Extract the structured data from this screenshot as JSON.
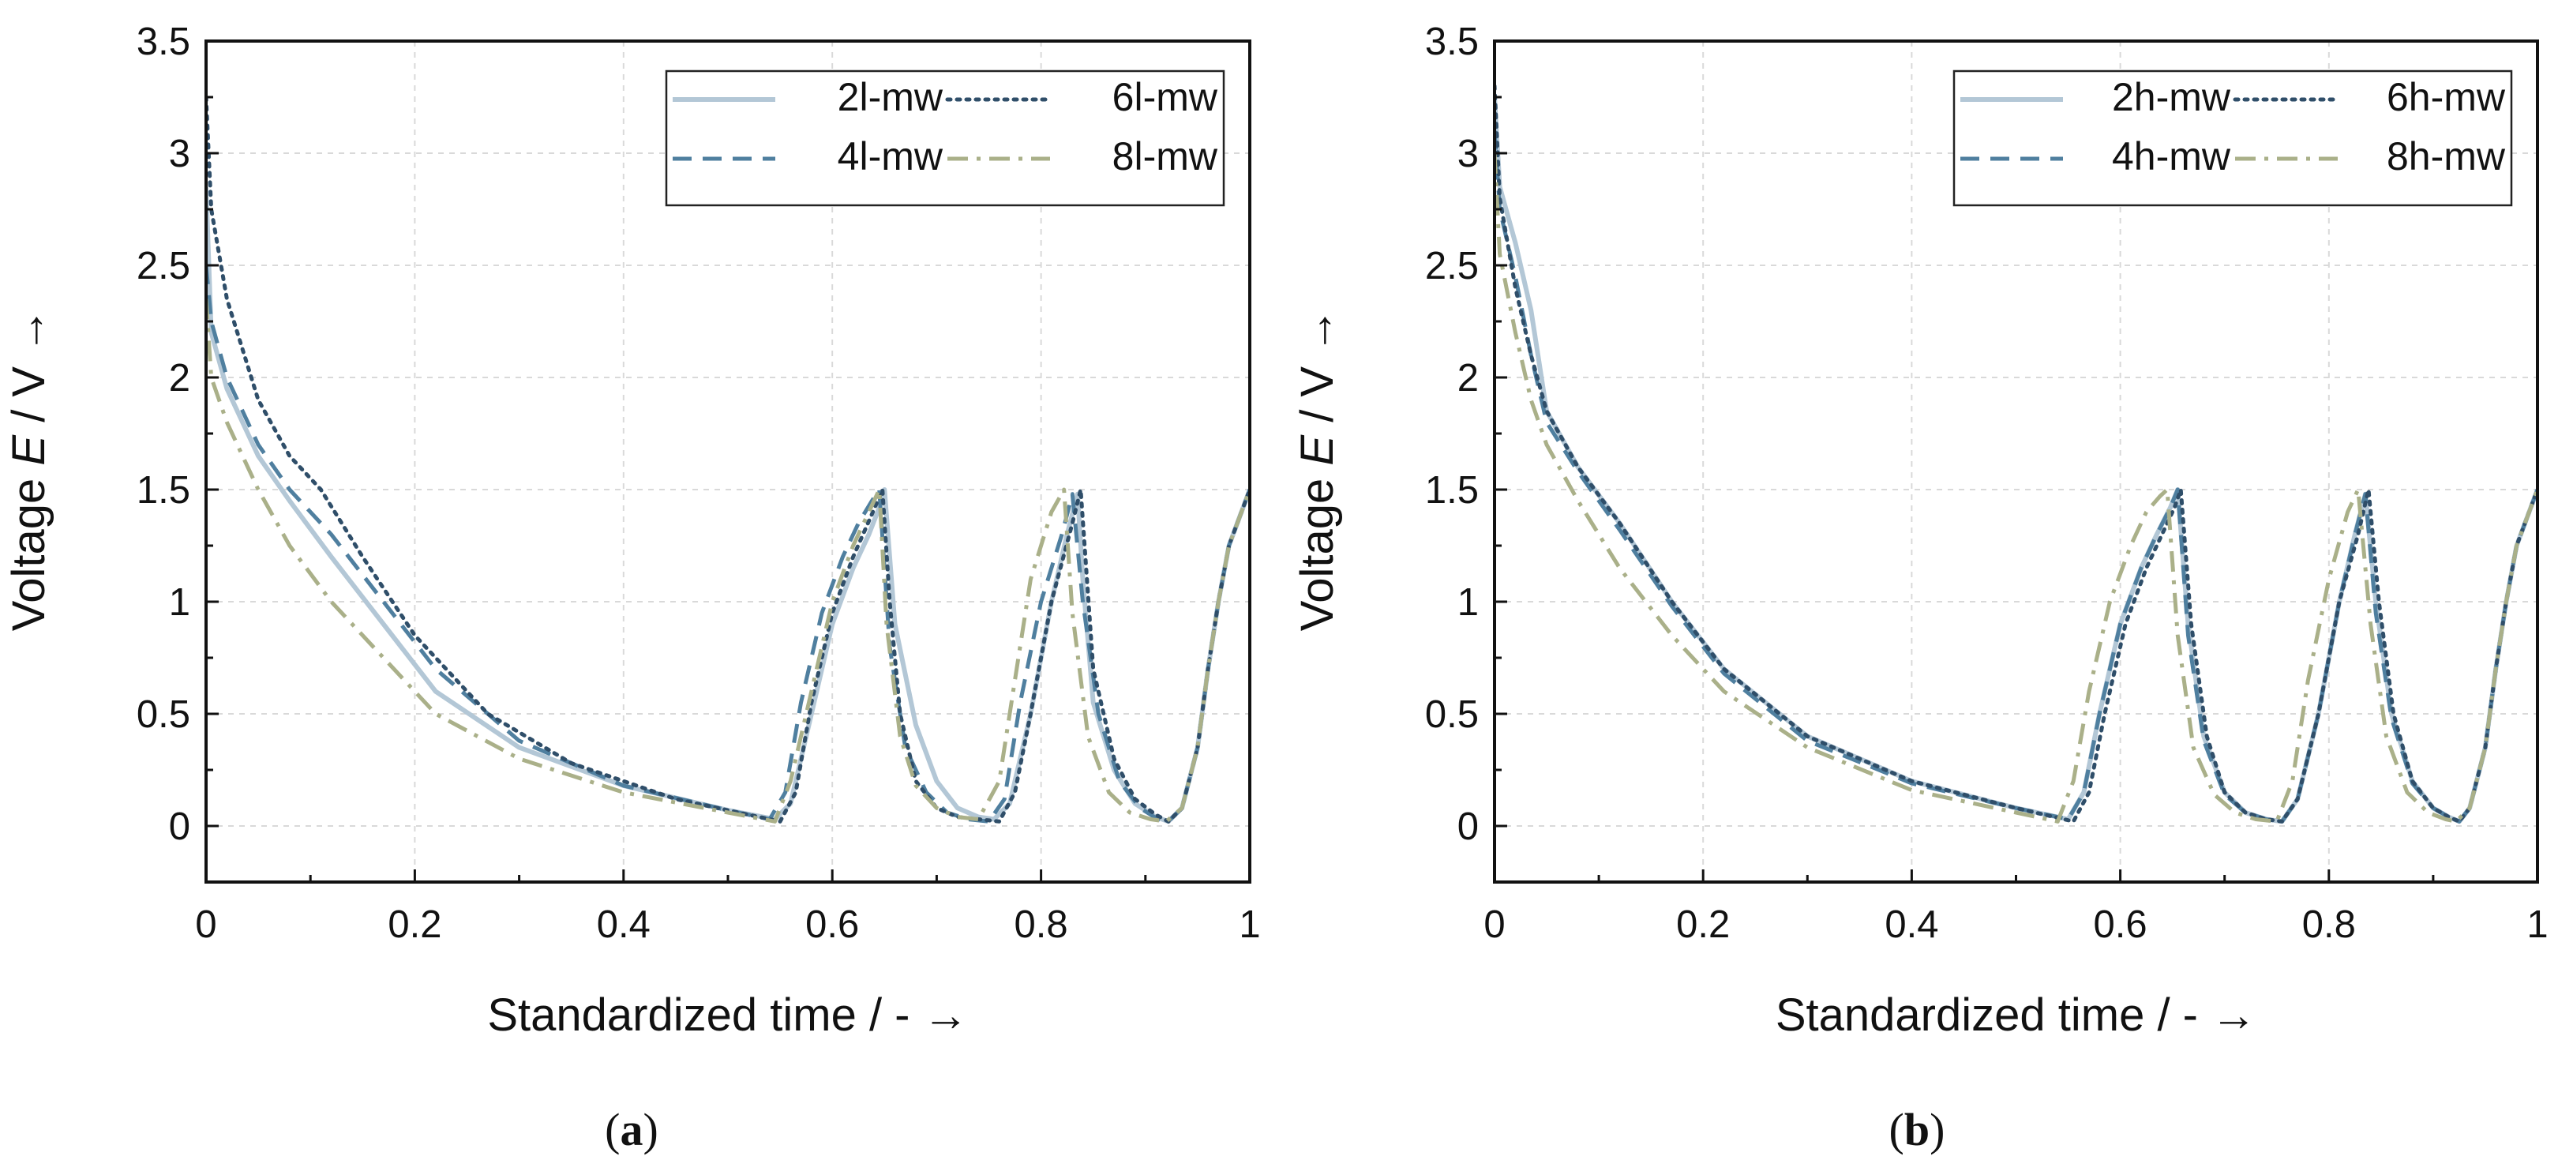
{
  "figure": {
    "y_label_prefix": "Voltage ",
    "y_label_symbol": "E",
    "y_label_suffix": " / V →",
    "x_label": "Standardized time / - →"
  },
  "colors": {
    "c2": "#b3c7d6",
    "c4": "#4f7f9f",
    "c6": "#2f4e69",
    "c8": "#aab089",
    "grid": "#d9d9d9",
    "axis": "#111111"
  },
  "chart_data": [
    {
      "type": "line",
      "panel_caption_prefix": "(",
      "panel_letter": "a",
      "panel_caption_suffix": ")",
      "xlabel": "Standardized time / - →",
      "ylabel": "Voltage E / V →",
      "xlim": [
        0,
        1
      ],
      "ylim": [
        -0.25,
        3.5
      ],
      "xticks": [
        "0",
        "0.2",
        "0.4",
        "0.6",
        "0.8",
        "1"
      ],
      "yticks": [
        "0",
        "0.5",
        "1",
        "1.5",
        "2",
        "2.5",
        "3",
        "3.5"
      ],
      "grid": true,
      "legend_position": "top-right",
      "series": [
        {
          "name": "2l-mw",
          "style": "solid",
          "color_key": "c2",
          "x": [
            0,
            0.005,
            0.02,
            0.05,
            0.08,
            0.12,
            0.17,
            0.22,
            0.3,
            0.4,
            0.5,
            0.545,
            0.56,
            0.58,
            0.6,
            0.62,
            0.635,
            0.645,
            0.65,
            0.66,
            0.68,
            0.7,
            0.72,
            0.74,
            0.755,
            0.77,
            0.79,
            0.81,
            0.825,
            0.835,
            0.84,
            0.85,
            0.87,
            0.89,
            0.91,
            0.922,
            0.935,
            0.95,
            0.96,
            0.97,
            0.98,
            1.0
          ],
          "y": [
            2.85,
            2.2,
            1.95,
            1.65,
            1.45,
            1.2,
            0.9,
            0.6,
            0.35,
            0.18,
            0.07,
            0.03,
            0.1,
            0.5,
            0.9,
            1.15,
            1.3,
            1.42,
            1.5,
            0.9,
            0.45,
            0.2,
            0.08,
            0.04,
            0.03,
            0.1,
            0.5,
            1.0,
            1.3,
            1.48,
            1.1,
            0.55,
            0.25,
            0.1,
            0.04,
            0.02,
            0.08,
            0.35,
            0.7,
            1.0,
            1.25,
            1.5
          ]
        },
        {
          "name": "4l-mw",
          "style": "dashed",
          "color_key": "c4",
          "x": [
            0,
            0.005,
            0.02,
            0.05,
            0.08,
            0.12,
            0.17,
            0.22,
            0.3,
            0.4,
            0.5,
            0.54,
            0.555,
            0.57,
            0.59,
            0.61,
            0.625,
            0.638,
            0.645,
            0.655,
            0.67,
            0.69,
            0.71,
            0.73,
            0.75,
            0.765,
            0.78,
            0.8,
            0.82,
            0.83,
            0.84,
            0.855,
            0.875,
            0.895,
            0.912,
            0.922,
            0.935,
            0.95,
            0.96,
            0.97,
            0.98,
            1.0
          ],
          "y": [
            2.5,
            2.25,
            2.0,
            1.7,
            1.5,
            1.3,
            1.0,
            0.7,
            0.38,
            0.18,
            0.07,
            0.03,
            0.15,
            0.55,
            0.95,
            1.2,
            1.35,
            1.45,
            1.5,
            0.8,
            0.35,
            0.15,
            0.06,
            0.03,
            0.02,
            0.12,
            0.55,
            1.0,
            1.3,
            1.48,
            1.0,
            0.5,
            0.2,
            0.08,
            0.03,
            0.02,
            0.08,
            0.35,
            0.7,
            1.0,
            1.25,
            1.5
          ]
        },
        {
          "name": "6l-mw",
          "style": "dotted",
          "color_key": "c6",
          "x": [
            0,
            0.005,
            0.02,
            0.05,
            0.08,
            0.11,
            0.15,
            0.2,
            0.27,
            0.35,
            0.45,
            0.52,
            0.55,
            0.565,
            0.58,
            0.6,
            0.62,
            0.637,
            0.648,
            0.655,
            0.665,
            0.68,
            0.7,
            0.72,
            0.74,
            0.76,
            0.775,
            0.79,
            0.81,
            0.83,
            0.838,
            0.85,
            0.87,
            0.89,
            0.91,
            0.922,
            0.935,
            0.95,
            0.96,
            0.97,
            0.98,
            1.0
          ],
          "y": [
            3.25,
            2.75,
            2.35,
            1.9,
            1.65,
            1.5,
            1.2,
            0.85,
            0.5,
            0.28,
            0.12,
            0.05,
            0.02,
            0.15,
            0.55,
            0.95,
            1.2,
            1.38,
            1.5,
            1.0,
            0.5,
            0.2,
            0.08,
            0.04,
            0.03,
            0.02,
            0.15,
            0.5,
            1.0,
            1.35,
            1.5,
            0.7,
            0.3,
            0.12,
            0.05,
            0.02,
            0.08,
            0.35,
            0.7,
            1.0,
            1.25,
            1.5
          ]
        },
        {
          "name": "8l-mw",
          "style": "dashdot",
          "color_key": "c8",
          "x": [
            0,
            0.005,
            0.02,
            0.05,
            0.08,
            0.12,
            0.17,
            0.22,
            0.3,
            0.4,
            0.5,
            0.545,
            0.56,
            0.58,
            0.6,
            0.62,
            0.635,
            0.645,
            0.652,
            0.665,
            0.68,
            0.7,
            0.72,
            0.74,
            0.76,
            0.775,
            0.79,
            0.81,
            0.822,
            0.83,
            0.845,
            0.865,
            0.885,
            0.905,
            0.92,
            0.935,
            0.95,
            0.96,
            0.97,
            0.98,
            1.0
          ],
          "y": [
            2.35,
            2.0,
            1.8,
            1.5,
            1.25,
            1.0,
            0.75,
            0.5,
            0.3,
            0.15,
            0.06,
            0.02,
            0.2,
            0.6,
            1.0,
            1.25,
            1.4,
            1.5,
            0.9,
            0.4,
            0.18,
            0.08,
            0.04,
            0.03,
            0.2,
            0.65,
            1.1,
            1.4,
            1.5,
            0.95,
            0.4,
            0.15,
            0.06,
            0.03,
            0.02,
            0.08,
            0.35,
            0.7,
            1.0,
            1.25,
            1.5
          ]
        }
      ]
    },
    {
      "type": "line",
      "panel_caption_prefix": "(",
      "panel_letter": "b",
      "panel_caption_suffix": ")",
      "xlabel": "Standardized time / - →",
      "ylabel": "Voltage E / V →",
      "xlim": [
        0,
        1
      ],
      "ylim": [
        -0.25,
        3.5
      ],
      "xticks": [
        "0",
        "0.2",
        "0.4",
        "0.6",
        "0.8",
        "1"
      ],
      "yticks": [
        "0",
        "0.5",
        "1",
        "1.5",
        "2",
        "2.5",
        "3",
        "3.5"
      ],
      "grid": true,
      "legend_position": "top-right",
      "series": [
        {
          "name": "2h-mw",
          "style": "solid",
          "color_key": "c2",
          "x": [
            0,
            0.005,
            0.02,
            0.035,
            0.05,
            0.08,
            0.12,
            0.17,
            0.22,
            0.3,
            0.4,
            0.5,
            0.55,
            0.565,
            0.58,
            0.6,
            0.62,
            0.635,
            0.648,
            0.655,
            0.665,
            0.68,
            0.7,
            0.72,
            0.74,
            0.755,
            0.77,
            0.79,
            0.81,
            0.825,
            0.835,
            0.845,
            0.86,
            0.88,
            0.9,
            0.915,
            0.925,
            0.935,
            0.95,
            0.96,
            0.97,
            0.98,
            1.0
          ],
          "y": [
            3.25,
            2.85,
            2.6,
            2.3,
            1.85,
            1.6,
            1.35,
            1.0,
            0.7,
            0.4,
            0.2,
            0.08,
            0.03,
            0.15,
            0.5,
            0.9,
            1.15,
            1.3,
            1.42,
            1.5,
            0.9,
            0.4,
            0.15,
            0.06,
            0.03,
            0.02,
            0.12,
            0.5,
            1.0,
            1.3,
            1.48,
            1.0,
            0.5,
            0.2,
            0.08,
            0.04,
            0.02,
            0.08,
            0.35,
            0.7,
            1.0,
            1.25,
            1.5
          ]
        },
        {
          "name": "4h-mw",
          "style": "dashed",
          "color_key": "c4",
          "x": [
            0,
            0.005,
            0.02,
            0.035,
            0.05,
            0.08,
            0.12,
            0.17,
            0.22,
            0.3,
            0.4,
            0.5,
            0.55,
            0.565,
            0.58,
            0.6,
            0.62,
            0.635,
            0.648,
            0.655,
            0.665,
            0.68,
            0.7,
            0.72,
            0.74,
            0.755,
            0.77,
            0.79,
            0.81,
            0.825,
            0.835,
            0.845,
            0.86,
            0.88,
            0.9,
            0.915,
            0.925,
            0.935,
            0.95,
            0.96,
            0.97,
            0.98,
            1.0
          ],
          "y": [
            3.1,
            2.75,
            2.45,
            2.1,
            1.8,
            1.58,
            1.32,
            0.98,
            0.68,
            0.38,
            0.19,
            0.08,
            0.03,
            0.15,
            0.5,
            0.9,
            1.15,
            1.3,
            1.42,
            1.5,
            0.85,
            0.38,
            0.14,
            0.06,
            0.03,
            0.02,
            0.12,
            0.5,
            1.0,
            1.3,
            1.48,
            0.95,
            0.48,
            0.19,
            0.08,
            0.04,
            0.02,
            0.08,
            0.35,
            0.7,
            1.0,
            1.25,
            1.5
          ]
        },
        {
          "name": "6h-mw",
          "style": "dotted",
          "color_key": "c6",
          "x": [
            0,
            0.005,
            0.02,
            0.035,
            0.05,
            0.08,
            0.12,
            0.17,
            0.22,
            0.3,
            0.4,
            0.5,
            0.555,
            0.57,
            0.585,
            0.605,
            0.625,
            0.64,
            0.652,
            0.658,
            0.668,
            0.683,
            0.7,
            0.72,
            0.74,
            0.755,
            0.77,
            0.79,
            0.81,
            0.828,
            0.838,
            0.848,
            0.862,
            0.88,
            0.9,
            0.915,
            0.925,
            0.935,
            0.95,
            0.96,
            0.97,
            0.98,
            1.0
          ],
          "y": [
            3.3,
            2.8,
            2.4,
            2.1,
            1.85,
            1.6,
            1.35,
            1.0,
            0.7,
            0.4,
            0.2,
            0.08,
            0.02,
            0.15,
            0.5,
            0.9,
            1.15,
            1.3,
            1.42,
            1.5,
            0.9,
            0.4,
            0.15,
            0.06,
            0.03,
            0.02,
            0.12,
            0.5,
            1.0,
            1.3,
            1.5,
            1.0,
            0.5,
            0.2,
            0.08,
            0.04,
            0.02,
            0.08,
            0.35,
            0.7,
            1.0,
            1.25,
            1.5
          ]
        },
        {
          "name": "8h-mw",
          "style": "dashdot",
          "color_key": "c8",
          "x": [
            0,
            0.005,
            0.02,
            0.035,
            0.05,
            0.08,
            0.12,
            0.17,
            0.22,
            0.3,
            0.4,
            0.5,
            0.54,
            0.555,
            0.57,
            0.59,
            0.61,
            0.625,
            0.638,
            0.645,
            0.655,
            0.67,
            0.69,
            0.71,
            0.73,
            0.75,
            0.765,
            0.78,
            0.8,
            0.818,
            0.828,
            0.84,
            0.855,
            0.875,
            0.895,
            0.912,
            0.922,
            0.935,
            0.95,
            0.96,
            0.97,
            0.98,
            1.0
          ],
          "y": [
            3.0,
            2.55,
            2.2,
            1.9,
            1.7,
            1.45,
            1.15,
            0.85,
            0.6,
            0.35,
            0.16,
            0.06,
            0.02,
            0.2,
            0.6,
            1.0,
            1.25,
            1.4,
            1.47,
            1.5,
            0.85,
            0.35,
            0.14,
            0.06,
            0.03,
            0.02,
            0.2,
            0.65,
            1.1,
            1.4,
            1.5,
            0.9,
            0.4,
            0.15,
            0.06,
            0.03,
            0.02,
            0.08,
            0.35,
            0.7,
            1.0,
            1.25,
            1.5
          ]
        }
      ]
    }
  ]
}
